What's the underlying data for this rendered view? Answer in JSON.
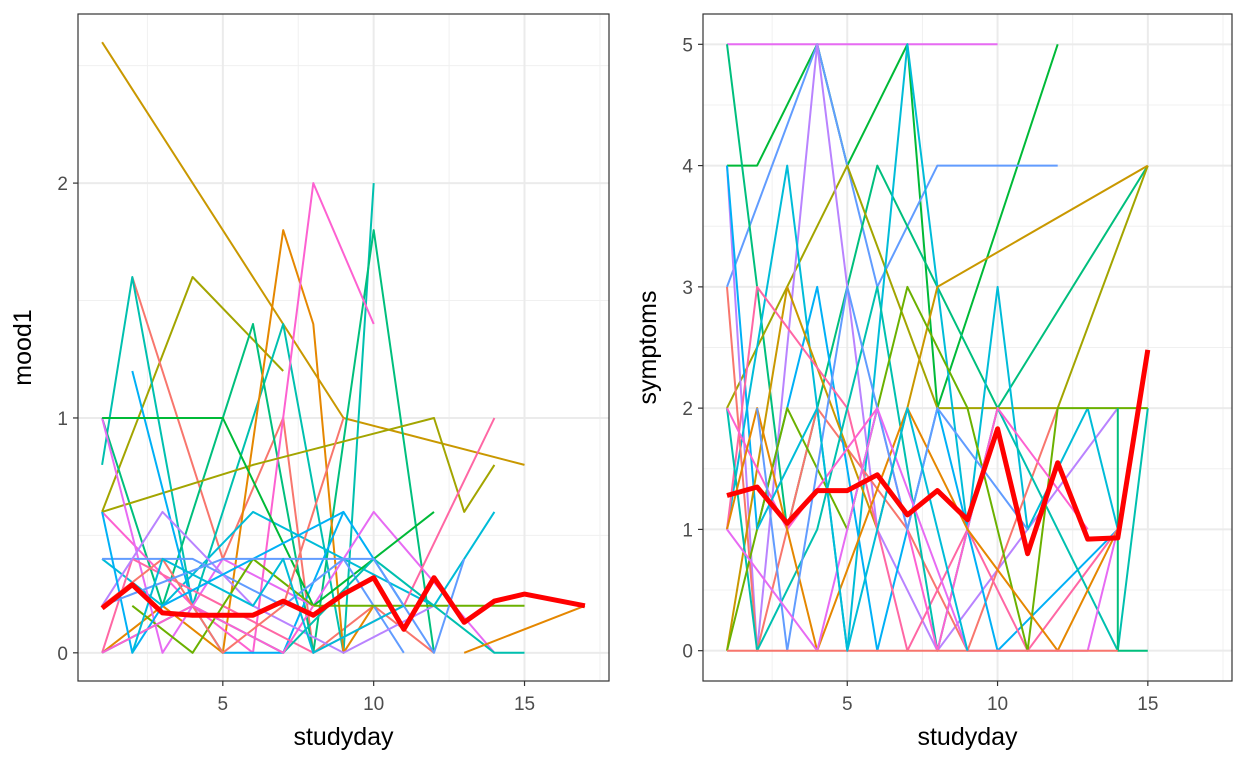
{
  "chart_data": [
    {
      "type": "line",
      "xlabel": "studyday",
      "ylabel": "mood1",
      "xlim": [
        0.2,
        17.8
      ],
      "ylim": [
        -0.12,
        2.72
      ],
      "x_ticks": [
        5,
        10,
        15
      ],
      "y_ticks": [
        0,
        1,
        2
      ],
      "x_tick_labels": [
        "5",
        "10",
        "15"
      ],
      "y_tick_labels": [
        "0",
        "1",
        "2"
      ],
      "grid": true,
      "series_palette": [
        "#F8766D",
        "#E58700",
        "#C99800",
        "#A3A500",
        "#6BB100",
        "#00BA38",
        "#00BF7D",
        "#00C0AF",
        "#00BCD8",
        "#00B0F6",
        "#619CFF",
        "#B983FF",
        "#E76BF3",
        "#FD61D1",
        "#FF67A4"
      ],
      "series": [
        {
          "color": "#C99800",
          "x": [
            1,
            9,
            15
          ],
          "y": [
            2.6,
            1.0,
            0.8
          ]
        },
        {
          "color": "#A3A500",
          "x": [
            1,
            4,
            7
          ],
          "y": [
            0.6,
            1.6,
            1.2
          ]
        },
        {
          "color": "#F8766D",
          "x": [
            2,
            5,
            7,
            8,
            10,
            12
          ],
          "y": [
            1.6,
            0.4,
            1.0,
            0.0,
            0.2,
            0.0
          ]
        },
        {
          "color": "#00C0AF",
          "x": [
            1,
            2,
            4,
            7,
            9,
            10
          ],
          "y": [
            0.8,
            1.6,
            0.2,
            1.4,
            0.0,
            2.0
          ]
        },
        {
          "color": "#00BF7D",
          "x": [
            1,
            3,
            6,
            8,
            10,
            12
          ],
          "y": [
            1.0,
            0.2,
            1.4,
            0.0,
            1.8,
            0.0
          ]
        },
        {
          "color": "#E58700",
          "x": [
            1,
            3,
            5,
            7,
            8,
            9,
            10
          ],
          "y": [
            0.0,
            0.2,
            0.0,
            1.8,
            1.4,
            0.0,
            0.2
          ]
        },
        {
          "color": "#FD61D1",
          "x": [
            1,
            4,
            6,
            8,
            10
          ],
          "y": [
            0.6,
            0.2,
            0.0,
            2.0,
            1.4
          ]
        },
        {
          "color": "#A3A500",
          "x": [
            1,
            6,
            12,
            13,
            14
          ],
          "y": [
            0.6,
            0.8,
            1.0,
            0.6,
            0.8
          ]
        },
        {
          "color": "#00B0F6",
          "x": [
            2,
            4,
            5,
            7,
            9,
            11
          ],
          "y": [
            1.2,
            0.2,
            0.0,
            0.0,
            0.6,
            0.2
          ]
        },
        {
          "color": "#00BCD8",
          "x": [
            1,
            3,
            6,
            9,
            12,
            14
          ],
          "y": [
            0.4,
            0.2,
            0.6,
            0.4,
            0.2,
            0.6
          ]
        },
        {
          "color": "#E76BF3",
          "x": [
            1,
            3,
            5,
            8,
            10,
            14
          ],
          "y": [
            1.0,
            0.0,
            0.4,
            0.2,
            0.6,
            0.0
          ]
        },
        {
          "color": "#00BA38",
          "x": [
            1,
            5,
            8,
            10,
            12
          ],
          "y": [
            1.0,
            1.0,
            0.2,
            0.4,
            0.6
          ]
        },
        {
          "color": "#619CFF",
          "x": [
            1,
            4,
            7,
            9,
            11
          ],
          "y": [
            0.4,
            0.4,
            0.2,
            0.4,
            0.0
          ]
        },
        {
          "color": "#FF67A4",
          "x": [
            1,
            2,
            5,
            8,
            11,
            14
          ],
          "y": [
            0.0,
            0.4,
            0.2,
            0.0,
            0.2,
            1.0
          ]
        },
        {
          "color": "#B983FF",
          "x": [
            1,
            3,
            6,
            9,
            12
          ],
          "y": [
            0.2,
            0.6,
            0.2,
            0.0,
            0.2
          ]
        },
        {
          "color": "#6BB100",
          "x": [
            2,
            4,
            6,
            8,
            10,
            12,
            15
          ],
          "y": [
            0.2,
            0.0,
            0.4,
            0.2,
            0.2,
            0.2,
            0.2
          ]
        },
        {
          "color": "#00C0AF",
          "x": [
            1,
            4,
            7,
            10,
            14,
            15
          ],
          "y": [
            0.0,
            0.2,
            0.0,
            0.4,
            0.0,
            0.0
          ]
        },
        {
          "color": "#F8766D",
          "x": [
            1,
            3,
            5,
            7,
            9
          ],
          "y": [
            0.2,
            0.4,
            0.0,
            0.2,
            1.0
          ]
        },
        {
          "color": "#E58700",
          "x": [
            13,
            17
          ],
          "y": [
            0.0,
            0.2
          ]
        },
        {
          "color": "#00B0F6",
          "x": [
            1,
            2,
            3,
            6,
            9
          ],
          "y": [
            0.6,
            0.0,
            0.2,
            0.4,
            0.6
          ]
        },
        {
          "color": "#FD61D1",
          "x": [
            1,
            4,
            7,
            8
          ],
          "y": [
            0.0,
            0.2,
            0.0,
            0.2
          ]
        },
        {
          "color": "#619CFF",
          "x": [
            1,
            5,
            10,
            12,
            13
          ],
          "y": [
            0.2,
            0.4,
            0.4,
            0.0,
            0.4
          ]
        },
        {
          "color": "#00BCD8",
          "x": [
            2,
            3,
            6,
            7,
            8,
            11
          ],
          "y": [
            0.0,
            0.4,
            0.2,
            0.4,
            0.0,
            0.2
          ]
        }
      ],
      "mean_line": {
        "color": "#FF0000",
        "x": [
          1,
          2,
          3,
          4,
          5,
          6,
          7,
          8,
          9,
          10,
          11,
          12,
          13,
          14,
          15,
          17
        ],
        "y": [
          0.19,
          0.29,
          0.17,
          0.16,
          0.16,
          0.16,
          0.22,
          0.16,
          0.25,
          0.32,
          0.1,
          0.32,
          0.13,
          0.22,
          0.25,
          0.2
        ]
      }
    },
    {
      "type": "line",
      "xlabel": "studyday",
      "ylabel": "symptoms",
      "xlim": [
        0.2,
        17.8
      ],
      "ylim": [
        -0.25,
        5.25
      ],
      "x_ticks": [
        5,
        10,
        15
      ],
      "y_ticks": [
        0,
        1,
        2,
        3,
        4,
        5
      ],
      "x_tick_labels": [
        "5",
        "10",
        "15"
      ],
      "y_tick_labels": [
        "0",
        "1",
        "2",
        "3",
        "4",
        "5"
      ],
      "grid": true,
      "series_palette": [
        "#F8766D",
        "#E58700",
        "#C99800",
        "#A3A500",
        "#6BB100",
        "#00BA38",
        "#00BF7D",
        "#00C0AF",
        "#00BCD8",
        "#00B0F6",
        "#619CFF",
        "#B983FF",
        "#E76BF3",
        "#FD61D1",
        "#FF67A4"
      ],
      "series": [
        {
          "color": "#E76BF3",
          "x": [
            1,
            10
          ],
          "y": [
            5,
            5
          ]
        },
        {
          "color": "#00BA38",
          "x": [
            1,
            2,
            4,
            5,
            7,
            8,
            12
          ],
          "y": [
            4,
            4,
            5,
            4,
            5,
            2,
            5
          ]
        },
        {
          "color": "#619CFF",
          "x": [
            1,
            4,
            6,
            8,
            12
          ],
          "y": [
            3,
            5,
            3,
            4,
            4
          ]
        },
        {
          "color": "#00BF7D",
          "x": [
            1,
            3,
            6,
            8,
            10,
            15
          ],
          "y": [
            5,
            1,
            4,
            3,
            2,
            4
          ]
        },
        {
          "color": "#A3A500",
          "x": [
            1,
            5,
            8,
            12,
            15
          ],
          "y": [
            2,
            4,
            2,
            2,
            4
          ]
        },
        {
          "color": "#B983FF",
          "x": [
            1,
            2,
            4,
            6,
            8,
            14
          ],
          "y": [
            4,
            0,
            5,
            1,
            0,
            2
          ]
        },
        {
          "color": "#00BCD8",
          "x": [
            1,
            3,
            5,
            7,
            9,
            10,
            11,
            13,
            14
          ],
          "y": [
            1,
            4,
            0,
            5,
            1,
            3,
            1,
            2,
            1
          ]
        },
        {
          "color": "#F8766D",
          "x": [
            1,
            2,
            4,
            7,
            9,
            12
          ],
          "y": [
            3,
            0,
            2,
            1,
            0,
            2
          ]
        },
        {
          "color": "#00B0F6",
          "x": [
            1,
            2,
            4,
            6,
            8,
            10,
            14
          ],
          "y": [
            4,
            1,
            3,
            0,
            2,
            0,
            1
          ]
        },
        {
          "color": "#C99800",
          "x": [
            1,
            3,
            6,
            8,
            15
          ],
          "y": [
            0,
            3,
            1,
            3,
            4
          ]
        },
        {
          "color": "#FF67A4",
          "x": [
            1,
            2,
            5,
            7,
            9,
            11,
            14
          ],
          "y": [
            1,
            3,
            2,
            0,
            1,
            0,
            1
          ]
        },
        {
          "color": "#00C0AF",
          "x": [
            1,
            2,
            4,
            6,
            8,
            10,
            12,
            14,
            15
          ],
          "y": [
            2,
            0,
            1,
            3,
            0,
            2,
            1,
            0,
            2
          ]
        },
        {
          "color": "#6BB100",
          "x": [
            1,
            3,
            5,
            7,
            9,
            11,
            12,
            15
          ],
          "y": [
            0,
            2,
            1,
            3,
            2,
            0,
            2,
            2
          ]
        },
        {
          "color": "#FD61D1",
          "x": [
            1,
            3,
            6,
            8,
            10,
            13
          ],
          "y": [
            2,
            1,
            2,
            0,
            2,
            1
          ]
        },
        {
          "color": "#E58700",
          "x": [
            1,
            2,
            4,
            7,
            9,
            12,
            14
          ],
          "y": [
            1,
            2,
            0,
            2,
            1,
            0,
            1
          ]
        },
        {
          "color": "#00BF7D",
          "x": [
            14,
            14,
            15
          ],
          "y": [
            2,
            0,
            0
          ]
        },
        {
          "color": "#619CFF",
          "x": [
            2,
            3,
            5,
            7,
            8,
            11
          ],
          "y": [
            2,
            0,
            3,
            1,
            2,
            1
          ]
        },
        {
          "color": "#E76BF3",
          "x": [
            1,
            4,
            6,
            9,
            13,
            14
          ],
          "y": [
            1,
            0,
            2,
            0,
            0,
            1
          ]
        },
        {
          "color": "#F8766D",
          "x": [
            1,
            5,
            10,
            14
          ],
          "y": [
            0,
            0,
            0,
            0
          ]
        },
        {
          "color": "#00BCD8",
          "x": [
            2,
            4,
            5,
            7,
            9
          ],
          "y": [
            1,
            2,
            0,
            2,
            0
          ]
        }
      ],
      "mean_line": {
        "color": "#FF0000",
        "x": [
          1,
          2,
          3,
          4,
          5,
          6,
          7,
          8,
          9,
          10,
          11,
          12,
          13,
          14,
          15
        ],
        "y": [
          1.28,
          1.35,
          1.05,
          1.32,
          1.32,
          1.45,
          1.12,
          1.32,
          1.08,
          1.83,
          0.8,
          1.55,
          0.92,
          0.93,
          2.48
        ]
      }
    }
  ]
}
